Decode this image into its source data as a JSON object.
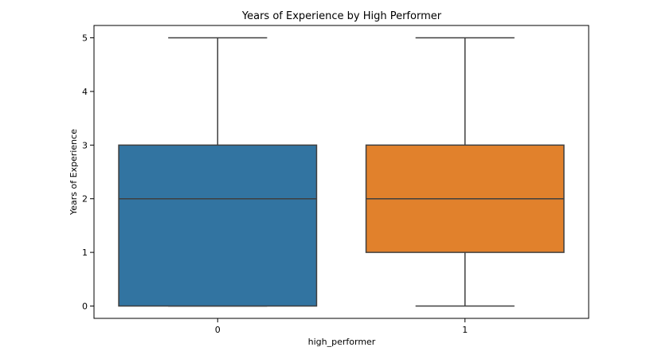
{
  "chart_data": {
    "type": "box",
    "title": "Years of Experience by High Performer",
    "xlabel": "high_performer",
    "ylabel": "Years of Experience",
    "categories": [
      "0",
      "1"
    ],
    "yticks": [
      "0",
      "1",
      "2",
      "3",
      "4",
      "5"
    ],
    "ylim": [
      -0.23,
      5.23
    ],
    "grid": false,
    "boxes": [
      {
        "category": "0",
        "whisker_low": 0,
        "q1": 0,
        "median": 2,
        "q3": 3,
        "whisker_high": 5,
        "color": "#3274a1"
      },
      {
        "category": "1",
        "whisker_low": 0,
        "q1": 1,
        "median": 2,
        "q3": 3,
        "whisker_high": 5,
        "color": "#e1812c"
      }
    ],
    "line_color": "#3f3f3f"
  }
}
